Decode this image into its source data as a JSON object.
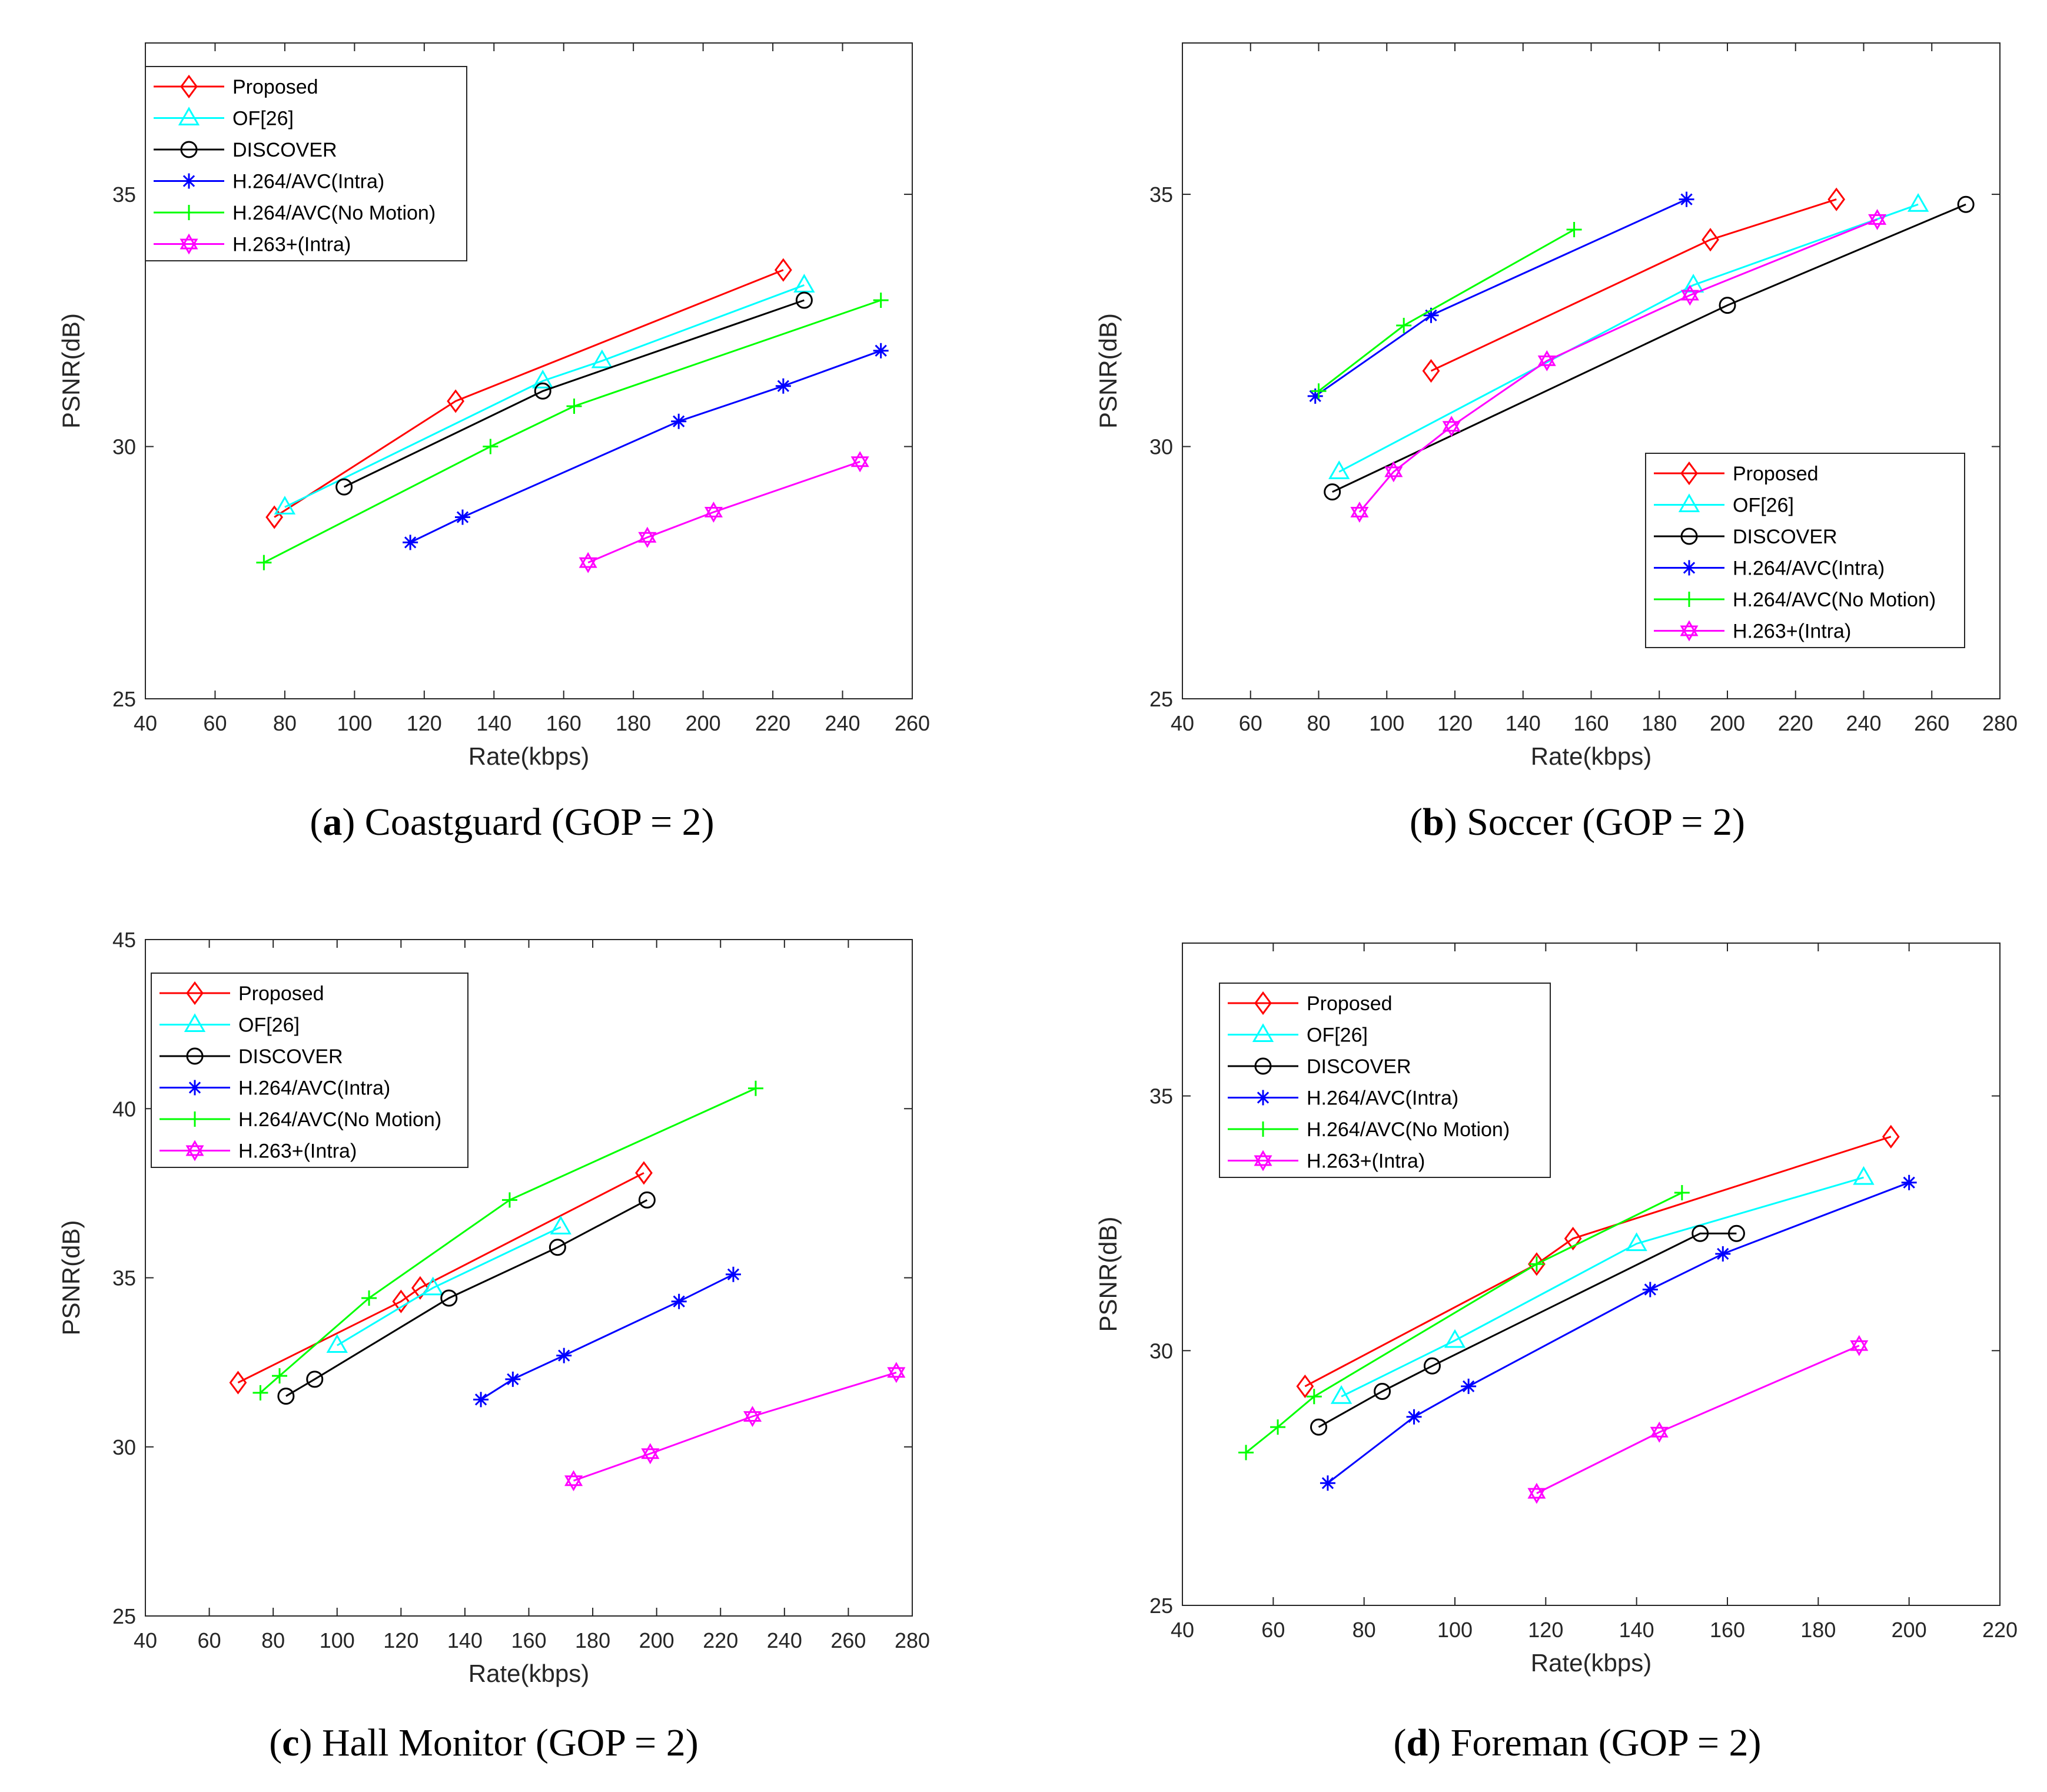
{
  "chart_data": [
    {
      "type": "line",
      "caption": {
        "letter": "a",
        "text": "Coastguard (GOP = 2)"
      },
      "xlabel": "Rate(kbps)",
      "ylabel": "PSNR(dB)",
      "xlim": [
        40,
        260
      ],
      "ylim": [
        25,
        38
      ],
      "xticks": [
        40,
        60,
        80,
        100,
        120,
        140,
        160,
        180,
        200,
        220,
        240,
        260
      ],
      "yticks": [
        25,
        30,
        35
      ],
      "legend_position": "top-left",
      "series": [
        {
          "name": "Proposed",
          "color": "#ff0000",
          "marker": "diamond",
          "x": [
            77,
            129,
            223
          ],
          "y": [
            28.6,
            30.9,
            33.5
          ]
        },
        {
          "name": "OF[26]",
          "color": "#00ffff",
          "marker": "triangle",
          "x": [
            80,
            154,
            171,
            229
          ],
          "y": [
            28.8,
            31.3,
            31.7,
            33.2
          ]
        },
        {
          "name": "DISCOVER",
          "color": "#000000",
          "marker": "circle",
          "x": [
            97,
            154,
            229
          ],
          "y": [
            29.2,
            31.1,
            32.9
          ]
        },
        {
          "name": "H.264/AVC(Intra)",
          "color": "#0000ff",
          "marker": "asterisk",
          "x": [
            116,
            131,
            193,
            223,
            251
          ],
          "y": [
            28.1,
            28.6,
            30.5,
            31.2,
            31.9
          ]
        },
        {
          "name": "H.264/AVC(No Motion)",
          "color": "#00ff00",
          "marker": "plus",
          "x": [
            74,
            139,
            163,
            251
          ],
          "y": [
            27.7,
            30.0,
            30.8,
            32.9
          ]
        },
        {
          "name": "H.263+(Intra)",
          "color": "#ff00ff",
          "marker": "hexagram",
          "x": [
            167,
            184,
            203,
            245
          ],
          "y": [
            27.7,
            28.2,
            28.7,
            29.7
          ]
        }
      ]
    },
    {
      "type": "line",
      "caption": {
        "letter": "b",
        "text": "Soccer (GOP = 2)"
      },
      "xlabel": "Rate(kbps)",
      "ylabel": "PSNR(dB)",
      "xlim": [
        40,
        280
      ],
      "ylim": [
        25,
        38
      ],
      "xticks": [
        40,
        60,
        80,
        100,
        120,
        140,
        160,
        180,
        200,
        220,
        240,
        260,
        280
      ],
      "yticks": [
        25,
        30,
        35
      ],
      "legend_position": "bottom-right",
      "series": [
        {
          "name": "Proposed",
          "color": "#ff0000",
          "marker": "diamond",
          "x": [
            113,
            195,
            232
          ],
          "y": [
            31.5,
            34.1,
            34.9
          ]
        },
        {
          "name": "OF[26]",
          "color": "#00ffff",
          "marker": "triangle",
          "x": [
            86,
            190,
            256
          ],
          "y": [
            29.5,
            33.2,
            34.8
          ]
        },
        {
          "name": "DISCOVER",
          "color": "#000000",
          "marker": "circle",
          "x": [
            84,
            200,
            270
          ],
          "y": [
            29.1,
            32.8,
            34.8
          ]
        },
        {
          "name": "H.264/AVC(Intra)",
          "color": "#0000ff",
          "marker": "asterisk",
          "x": [
            79,
            113,
            188
          ],
          "y": [
            31.0,
            32.6,
            34.9
          ]
        },
        {
          "name": "H.264/AVC(No Motion)",
          "color": "#00ff00",
          "marker": "plus",
          "x": [
            80,
            105,
            155
          ],
          "y": [
            31.1,
            32.4,
            34.3
          ]
        },
        {
          "name": "H.263+(Intra)",
          "color": "#ff00ff",
          "marker": "hexagram",
          "x": [
            92,
            102,
            119,
            147,
            189,
            244
          ],
          "y": [
            28.7,
            29.5,
            30.4,
            31.7,
            33.0,
            34.5
          ]
        }
      ]
    },
    {
      "type": "line",
      "caption": {
        "letter": "c",
        "text": "Hall Monitor (GOP = 2)"
      },
      "xlabel": "Rate(kbps)",
      "ylabel": "PSNR(dB)",
      "xlim": [
        40,
        280
      ],
      "ylim": [
        25,
        45
      ],
      "xticks": [
        40,
        60,
        80,
        100,
        120,
        140,
        160,
        180,
        200,
        220,
        240,
        260,
        280
      ],
      "yticks": [
        25,
        30,
        35,
        40,
        45
      ],
      "legend_position": "top-left",
      "series": [
        {
          "name": "Proposed",
          "color": "#ff0000",
          "marker": "diamond",
          "x": [
            69,
            120,
            126,
            196
          ],
          "y": [
            31.9,
            34.3,
            34.7,
            38.1
          ]
        },
        {
          "name": "OF[26]",
          "color": "#00ffff",
          "marker": "triangle",
          "x": [
            100,
            130,
            170
          ],
          "y": [
            33.0,
            34.7,
            36.5
          ]
        },
        {
          "name": "DISCOVER",
          "color": "#000000",
          "marker": "circle",
          "x": [
            84,
            93,
            135,
            169,
            197
          ],
          "y": [
            31.5,
            32.0,
            34.4,
            35.9,
            37.3
          ]
        },
        {
          "name": "H.264/AVC(Intra)",
          "color": "#0000ff",
          "marker": "asterisk",
          "x": [
            145,
            155,
            171,
            207,
            224
          ],
          "y": [
            31.4,
            32.0,
            32.7,
            34.3,
            35.1
          ]
        },
        {
          "name": "H.264/AVC(No Motion)",
          "color": "#00ff00",
          "marker": "plus",
          "x": [
            76,
            82,
            110,
            154,
            231
          ],
          "y": [
            31.6,
            32.1,
            34.4,
            37.3,
            40.6
          ]
        },
        {
          "name": "H.263+(Intra)",
          "color": "#ff00ff",
          "marker": "hexagram",
          "x": [
            174,
            198,
            230,
            275
          ],
          "y": [
            29.0,
            29.8,
            30.9,
            32.2
          ]
        }
      ]
    },
    {
      "type": "line",
      "caption": {
        "letter": "d",
        "text": "Foreman (GOP = 2)"
      },
      "xlabel": "Rate(kbps)",
      "ylabel": "PSNR(dB)",
      "xlim": [
        40,
        220
      ],
      "ylim": [
        25,
        38
      ],
      "xticks": [
        40,
        60,
        80,
        100,
        120,
        140,
        160,
        180,
        200,
        220
      ],
      "yticks": [
        25,
        30,
        35
      ],
      "legend_position": "top-left",
      "series": [
        {
          "name": "Proposed",
          "color": "#ff0000",
          "marker": "diamond",
          "x": [
            67,
            118,
            126,
            196
          ],
          "y": [
            29.3,
            31.7,
            32.2,
            34.2
          ]
        },
        {
          "name": "OF[26]",
          "color": "#00ffff",
          "marker": "triangle",
          "x": [
            75,
            100,
            140,
            190
          ],
          "y": [
            29.1,
            30.2,
            32.1,
            33.4
          ]
        },
        {
          "name": "DISCOVER",
          "color": "#000000",
          "marker": "circle",
          "x": [
            70,
            84,
            95,
            154,
            162
          ],
          "y": [
            28.5,
            29.2,
            29.7,
            32.3,
            32.3
          ]
        },
        {
          "name": "H.264/AVC(Intra)",
          "color": "#0000ff",
          "marker": "asterisk",
          "x": [
            72,
            91,
            103,
            143,
            159,
            200
          ],
          "y": [
            27.4,
            28.7,
            29.3,
            31.2,
            31.9,
            33.3
          ]
        },
        {
          "name": "H.264/AVC(No Motion)",
          "color": "#00ff00",
          "marker": "plus",
          "x": [
            54,
            61,
            69,
            118,
            150
          ],
          "y": [
            28.0,
            28.5,
            29.1,
            31.7,
            33.1
          ]
        },
        {
          "name": "H.263+(Intra)",
          "color": "#ff00ff",
          "marker": "hexagram",
          "x": [
            118,
            145,
            189
          ],
          "y": [
            27.2,
            28.4,
            30.1
          ]
        }
      ]
    }
  ]
}
